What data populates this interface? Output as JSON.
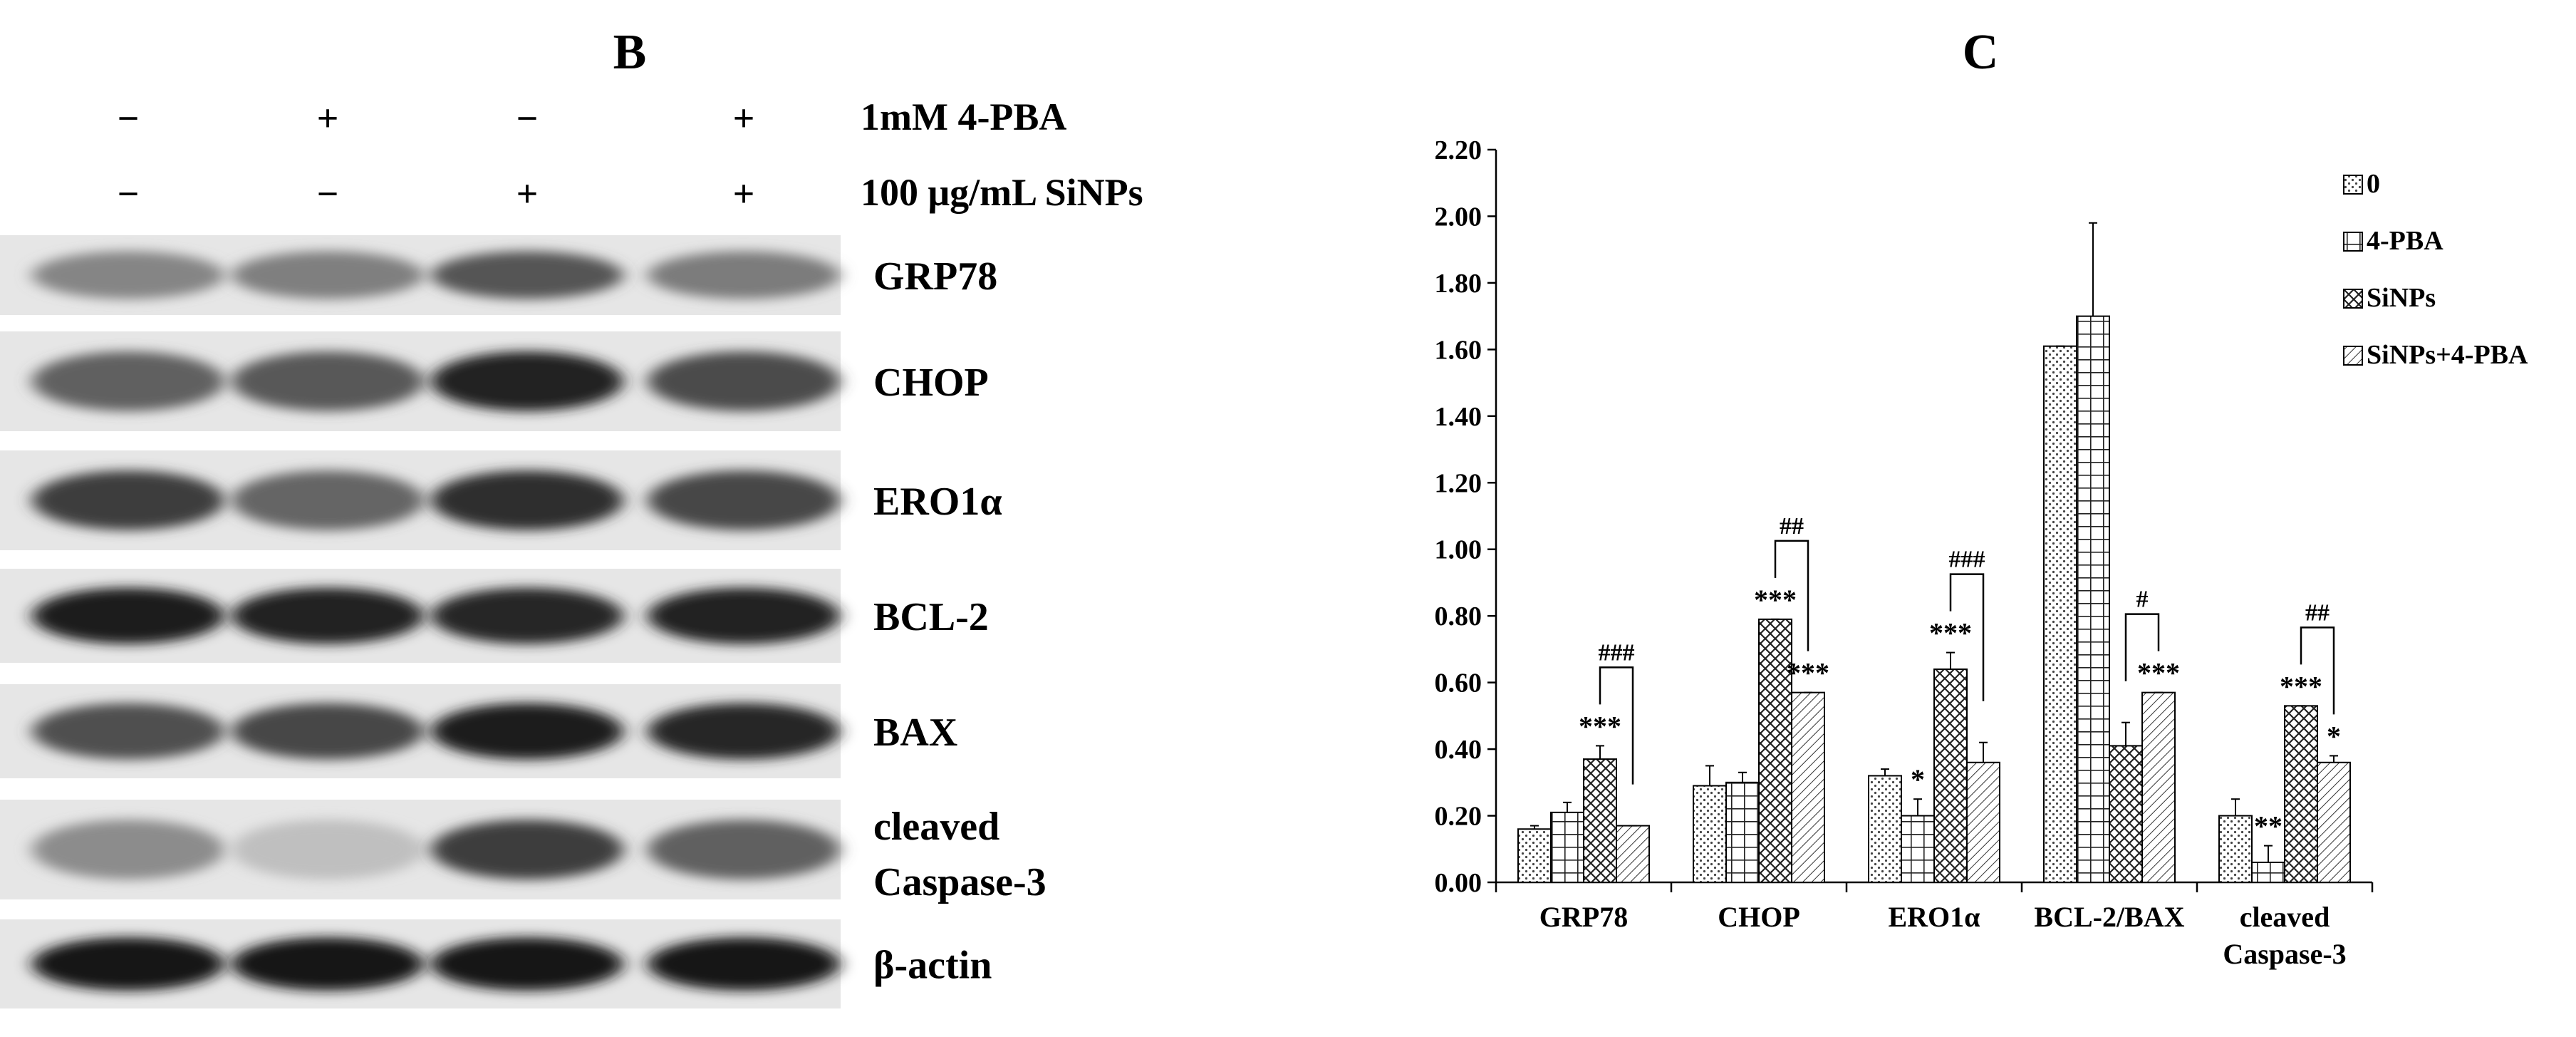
{
  "panel_b": {
    "letter": "B",
    "treatments": [
      {
        "label": "1mM 4-PBA",
        "signs": [
          "−",
          "+",
          "−",
          "+"
        ]
      },
      {
        "label": "100 μg/mL SiNPs",
        "signs": [
          "−",
          "−",
          "+",
          "+"
        ]
      }
    ],
    "blots": [
      {
        "label": "GRP78",
        "intensity": [
          0.45,
          0.48,
          0.68,
          0.5
        ]
      },
      {
        "label": "CHOP",
        "intensity": [
          0.62,
          0.66,
          0.92,
          0.72
        ]
      },
      {
        "label": "ERO1α",
        "intensity": [
          0.78,
          0.6,
          0.86,
          0.74
        ]
      },
      {
        "label": "BCL-2",
        "intensity": [
          0.95,
          0.92,
          0.9,
          0.92
        ]
      },
      {
        "label": "BAX",
        "intensity": [
          0.7,
          0.74,
          0.93,
          0.9
        ]
      },
      {
        "label": "cleaved Caspase-3",
        "label_lines": [
          "cleaved",
          "Caspase-3"
        ],
        "intensity": [
          0.42,
          0.18,
          0.78,
          0.62
        ]
      },
      {
        "label": "β-actin",
        "intensity": [
          0.97,
          0.96,
          0.96,
          0.98
        ]
      }
    ]
  },
  "chart_data": {
    "panel": "C",
    "type": "bar",
    "categories": [
      "GRP78",
      "CHOP",
      "ERO1α",
      "BCL-2/BAX",
      "cleaved Caspase-3"
    ],
    "category_lines": [
      [
        "GRP78"
      ],
      [
        "CHOP"
      ],
      [
        "ERO1α"
      ],
      [
        "BCL-2/BAX"
      ],
      [
        "cleaved",
        "Caspase-3"
      ]
    ],
    "series": [
      {
        "name": "0",
        "pattern": "dots",
        "values": [
          0.16,
          0.29,
          0.32,
          1.61,
          0.2
        ],
        "errors": [
          0.01,
          0.06,
          0.02,
          0.0,
          0.05
        ]
      },
      {
        "name": "4-PBA",
        "pattern": "grid",
        "values": [
          0.21,
          0.3,
          0.2,
          1.7,
          0.06
        ],
        "errors": [
          0.03,
          0.03,
          0.05,
          0.28,
          0.05
        ]
      },
      {
        "name": "SiNPs",
        "pattern": "crosshatch",
        "values": [
          0.37,
          0.79,
          0.64,
          0.41,
          0.53
        ],
        "errors": [
          0.04,
          0.0,
          0.05,
          0.07,
          0.0
        ]
      },
      {
        "name": "SiNPs+4-PBA",
        "pattern": "diagonal",
        "values": [
          0.17,
          0.57,
          0.36,
          0.57,
          0.36
        ],
        "errors": [
          0.0,
          0.0,
          0.06,
          0.0,
          0.02
        ]
      }
    ],
    "ylim": [
      0,
      2.2
    ],
    "yticks": [
      "0.00",
      "0.20",
      "0.40",
      "0.60",
      "0.80",
      "1.00",
      "1.20",
      "1.40",
      "1.60",
      "1.80",
      "2.00",
      "2.20"
    ],
    "significance": [
      {
        "category": 0,
        "series": 2,
        "text": "***"
      },
      {
        "category": 1,
        "series": 2,
        "text": "***"
      },
      {
        "category": 1,
        "series": 3,
        "text": "***"
      },
      {
        "category": 2,
        "series": 1,
        "text": "*"
      },
      {
        "category": 2,
        "series": 2,
        "text": "***"
      },
      {
        "category": 3,
        "series": 3,
        "text": "***"
      },
      {
        "category": 4,
        "series": 1,
        "text": "**"
      },
      {
        "category": 4,
        "series": 2,
        "text": "***"
      },
      {
        "category": 4,
        "series": 3,
        "text": "*"
      }
    ],
    "brackets": [
      {
        "category": 0,
        "text": "###"
      },
      {
        "category": 1,
        "text": "##"
      },
      {
        "category": 2,
        "text": "###"
      },
      {
        "category": 3,
        "text": "#"
      },
      {
        "category": 4,
        "text": "##"
      }
    ],
    "legend_position": "top-right",
    "grid": false
  }
}
